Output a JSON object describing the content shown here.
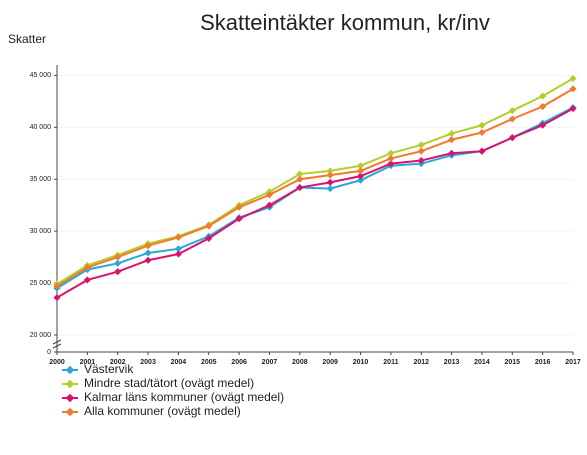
{
  "chart_data": {
    "type": "line",
    "title": "Skatteintäkter kommun, kr/inv",
    "y_label": "Skatter",
    "categories": [
      "2000",
      "2001",
      "2002",
      "2003",
      "2004",
      "2005",
      "2006",
      "2007",
      "2008",
      "2009",
      "2010",
      "2011",
      "2012",
      "2013",
      "2014",
      "2015",
      "2016",
      "2017"
    ],
    "series": [
      {
        "name": "Västervik",
        "color": "#29a8d8",
        "values": [
          24500,
          26300,
          26900,
          27900,
          28300,
          29500,
          31300,
          32300,
          34200,
          34100,
          34900,
          36300,
          36500,
          37300,
          37700,
          39000,
          40400,
          41900
        ]
      },
      {
        "name": "Mindre stad/tätort (ovägt medel)",
        "color": "#b5cd2a",
        "values": [
          24900,
          26700,
          27700,
          28800,
          29500,
          30600,
          32500,
          33800,
          35500,
          35800,
          36300,
          37500,
          38300,
          39400,
          40200,
          41600,
          43000,
          44700
        ]
      },
      {
        "name": "Kalmar läns kommuner (ovägt medel)",
        "color": "#d6136f",
        "values": [
          23600,
          25300,
          26100,
          27200,
          27800,
          29300,
          31200,
          32500,
          34200,
          34700,
          35300,
          36500,
          36800,
          37500,
          37700,
          39000,
          40200,
          41800
        ]
      },
      {
        "name": "Alla kommuner (ovägt medel)",
        "color": "#f07a2e",
        "values": [
          24700,
          26500,
          27500,
          28600,
          29400,
          30500,
          32300,
          33500,
          35000,
          35400,
          35800,
          37000,
          37700,
          38800,
          39500,
          40800,
          42000,
          43700
        ]
      }
    ],
    "ylim": [
      0,
      46000
    ],
    "yticks": [
      0,
      {
        "value": 20000,
        "label": "20 000"
      },
      {
        "value": 25000,
        "label": "25 000"
      },
      {
        "value": 30000,
        "label": "30 000"
      },
      {
        "value": 35000,
        "label": "35 000"
      },
      {
        "value": 40000,
        "label": "40 000"
      },
      {
        "value": 45000,
        "label": "45 000"
      }
    ],
    "y_break": true,
    "grid": true,
    "legend": "bottom"
  }
}
